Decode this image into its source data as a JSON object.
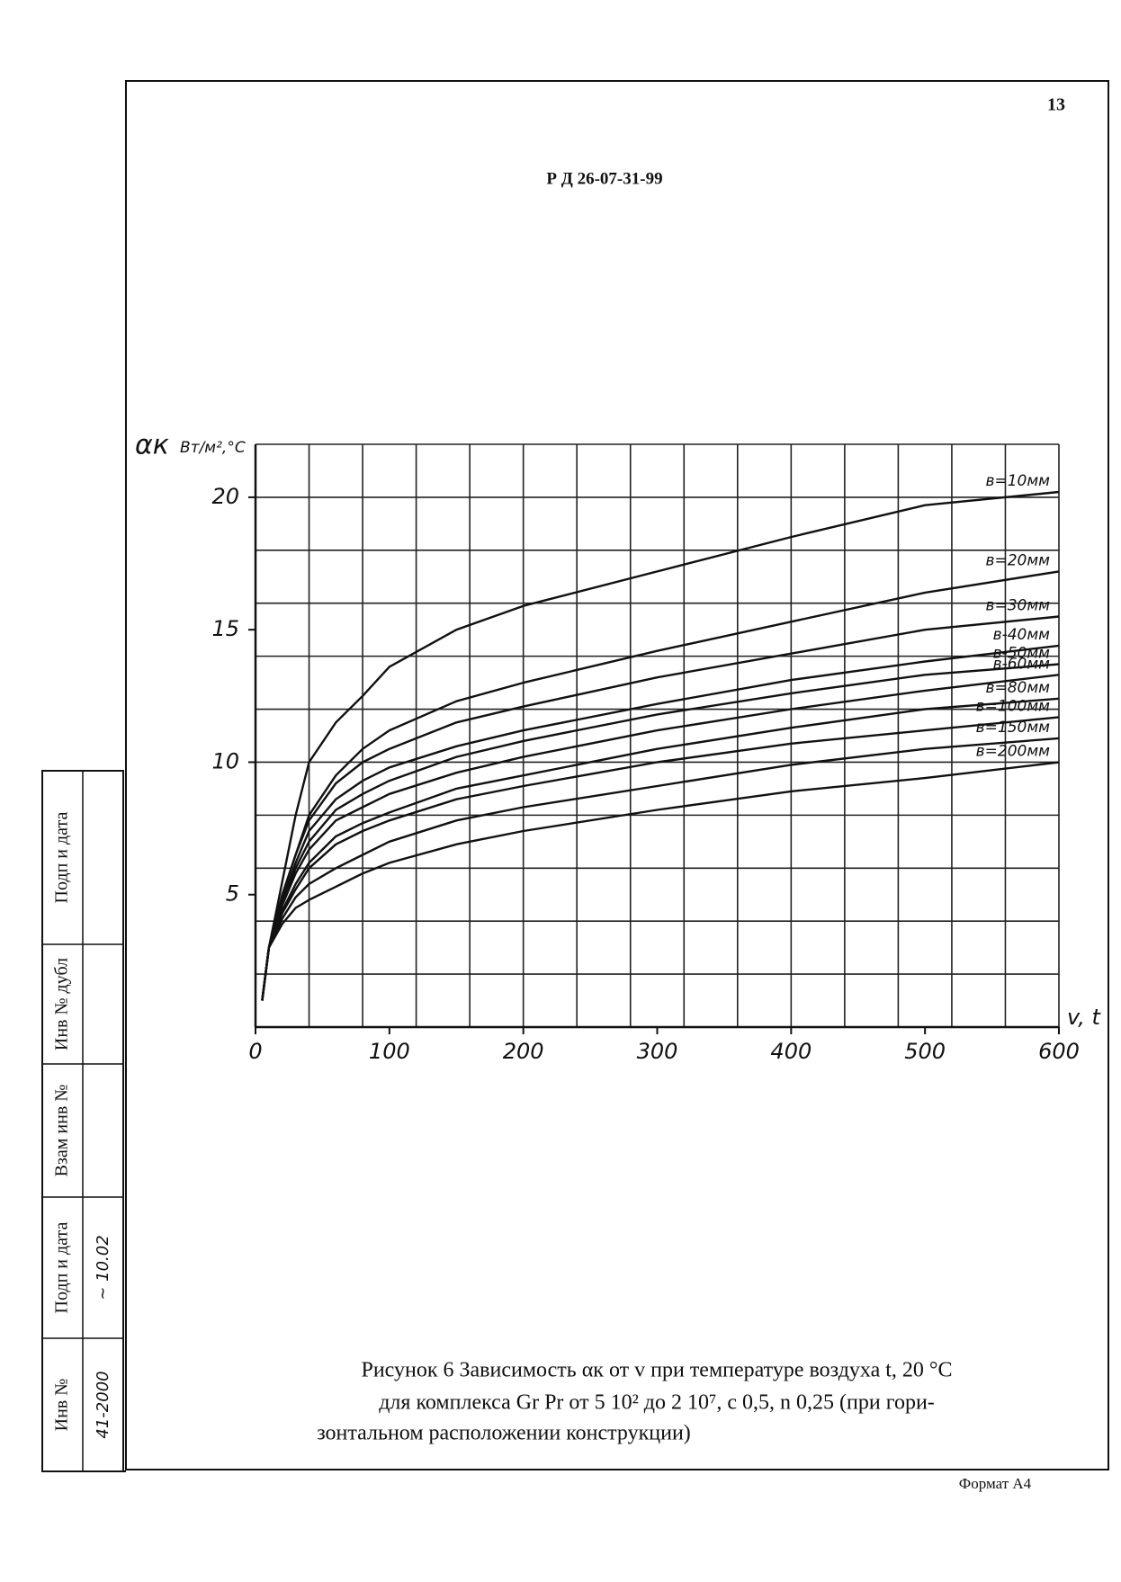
{
  "page": {
    "number": "13",
    "doc_code": "Р Д 26-07-31-99",
    "caption": [
      "Рисунок 6  Зависимость αк от v при температуре воздуха t, 20 °С",
      "для комплекса Gr Pr от 5 10² до 2 10⁷, c 0,5, n 0,25 (при гори-",
      "зонтальном расположении конструкции)"
    ],
    "format": "Формат А4"
  },
  "stamp": {
    "labels": [
      "Подп и дата",
      "Инв № дубл",
      "Взам инв №",
      "Подп и дата",
      "Инв №"
    ],
    "values": [
      "",
      "",
      "",
      "~ 10.02",
      "41-2000"
    ]
  },
  "chart_data": {
    "type": "line",
    "y_label": "αк",
    "y_unit": "Вт/м²,°С",
    "x_label": "v, t",
    "x": [
      5,
      10,
      20,
      30,
      40,
      60,
      80,
      100,
      150,
      200,
      300,
      400,
      500,
      600
    ],
    "xlim": [
      0,
      600
    ],
    "xticks": [
      0,
      100,
      200,
      300,
      400,
      500,
      600
    ],
    "ylim": [
      0,
      22
    ],
    "yticks": [
      5,
      10,
      15,
      20
    ],
    "xgrid": [
      0,
      40,
      80,
      120,
      160,
      200,
      240,
      280,
      320,
      360,
      400,
      440,
      480,
      520,
      560,
      600
    ],
    "ygrid": [
      2,
      4,
      6,
      8,
      10,
      12,
      14,
      16,
      18,
      20,
      22
    ],
    "series": [
      {
        "name": "в=10мм",
        "color": "#111",
        "values": [
          1,
          3,
          5.5,
          8,
          10,
          11.5,
          12.5,
          13.6,
          15,
          15.9,
          17.2,
          18.5,
          19.7,
          20.2
        ]
      },
      {
        "name": "в=20мм",
        "color": "#111",
        "values": [
          1,
          3,
          5,
          6.5,
          8,
          9.5,
          10.5,
          11.2,
          12.3,
          13,
          14.2,
          15.3,
          16.4,
          17.2
        ]
      },
      {
        "name": "в=30мм",
        "color": "#111",
        "values": [
          1,
          3,
          5,
          6.5,
          7.8,
          9.2,
          10,
          10.5,
          11.5,
          12.1,
          13.2,
          14.1,
          15,
          15.5
        ]
      },
      {
        "name": "в-40мм",
        "color": "#111",
        "values": [
          1,
          3,
          4.8,
          6.2,
          7.4,
          8.6,
          9.3,
          9.8,
          10.6,
          11.2,
          12.2,
          13.1,
          13.8,
          14.4
        ]
      },
      {
        "name": "в-50мм",
        "color": "#111",
        "values": [
          1,
          3,
          4.7,
          6,
          7,
          8.2,
          8.8,
          9.3,
          10.2,
          10.8,
          11.8,
          12.6,
          13.3,
          13.7
        ]
      },
      {
        "name": "в-60мм",
        "color": "#111",
        "values": [
          1,
          3,
          4.6,
          5.8,
          6.7,
          7.8,
          8.3,
          8.8,
          9.6,
          10.2,
          11.2,
          12,
          12.7,
          13.3
        ]
      },
      {
        "name": "в=80мм",
        "color": "#111",
        "values": [
          1,
          3,
          4.4,
          5.4,
          6.2,
          7.2,
          7.7,
          8.1,
          9,
          9.5,
          10.5,
          11.3,
          12,
          12.4
        ]
      },
      {
        "name": "в=100мм",
        "color": "#111",
        "values": [
          1,
          3,
          4.3,
          5.2,
          6,
          6.9,
          7.4,
          7.8,
          8.6,
          9.1,
          10,
          10.7,
          11.2,
          11.7
        ]
      },
      {
        "name": "в=150мм",
        "color": "#111",
        "values": [
          1,
          3,
          4.1,
          4.9,
          5.4,
          6,
          6.5,
          7,
          7.8,
          8.3,
          9.1,
          9.9,
          10.5,
          10.9
        ]
      },
      {
        "name": "в=200мм",
        "color": "#111",
        "values": [
          1,
          3,
          3.9,
          4.5,
          4.8,
          5.3,
          5.8,
          6.2,
          6.9,
          7.4,
          8.2,
          8.9,
          9.4,
          10
        ]
      }
    ]
  }
}
